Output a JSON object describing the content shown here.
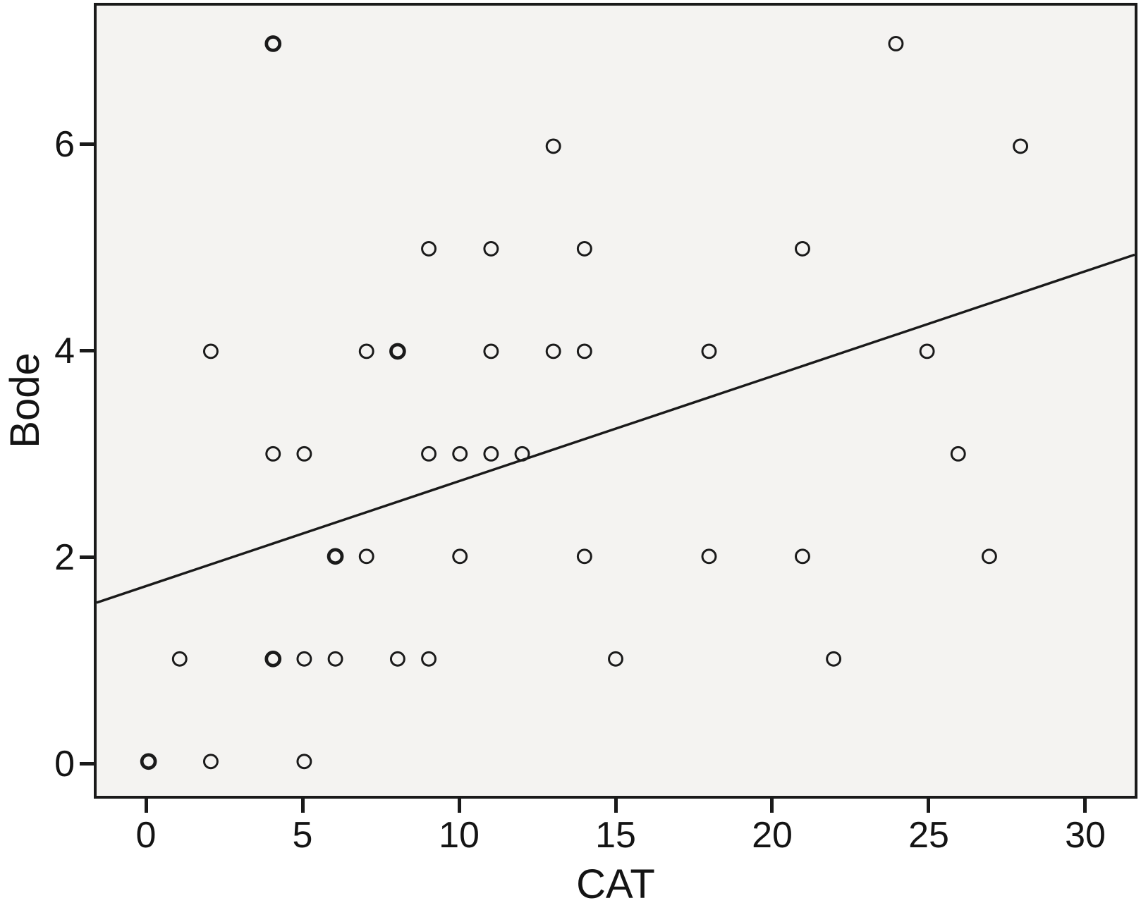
{
  "figure": {
    "kind": "scatterplot"
  },
  "chart_data": {
    "type": "scatter",
    "title": "",
    "xlabel": "CAT",
    "ylabel": "Bode",
    "xlim": [
      -1.667,
      31.667
    ],
    "ylim": [
      -0.335,
      7.371
    ],
    "x_ticks": [
      0,
      5,
      10,
      15,
      20,
      25,
      30
    ],
    "y_ticks": [
      0,
      2,
      4,
      6
    ],
    "grid": false,
    "legend": "none",
    "marker": "open-circle",
    "points": [
      {
        "x": 4,
        "y": 7,
        "bold": true
      },
      {
        "x": 24,
        "y": 7
      },
      {
        "x": 13,
        "y": 6
      },
      {
        "x": 28,
        "y": 6
      },
      {
        "x": 9,
        "y": 5
      },
      {
        "x": 11,
        "y": 5
      },
      {
        "x": 14,
        "y": 5
      },
      {
        "x": 21,
        "y": 5
      },
      {
        "x": 2,
        "y": 4
      },
      {
        "x": 7,
        "y": 4
      },
      {
        "x": 8,
        "y": 4,
        "bold": true
      },
      {
        "x": 11,
        "y": 4
      },
      {
        "x": 13,
        "y": 4
      },
      {
        "x": 14,
        "y": 4
      },
      {
        "x": 18,
        "y": 4
      },
      {
        "x": 25,
        "y": 4
      },
      {
        "x": 4,
        "y": 3
      },
      {
        "x": 5,
        "y": 3
      },
      {
        "x": 9,
        "y": 3
      },
      {
        "x": 10,
        "y": 3
      },
      {
        "x": 11,
        "y": 3
      },
      {
        "x": 12,
        "y": 3
      },
      {
        "x": 26,
        "y": 3
      },
      {
        "x": 6,
        "y": 2,
        "bold": true
      },
      {
        "x": 7,
        "y": 2
      },
      {
        "x": 10,
        "y": 2
      },
      {
        "x": 14,
        "y": 2
      },
      {
        "x": 18,
        "y": 2
      },
      {
        "x": 21,
        "y": 2
      },
      {
        "x": 27,
        "y": 2
      },
      {
        "x": 1,
        "y": 1
      },
      {
        "x": 4,
        "y": 1,
        "bold": true
      },
      {
        "x": 5,
        "y": 1
      },
      {
        "x": 6,
        "y": 1
      },
      {
        "x": 8,
        "y": 1
      },
      {
        "x": 9,
        "y": 1
      },
      {
        "x": 15,
        "y": 1
      },
      {
        "x": 22,
        "y": 1
      },
      {
        "x": 0,
        "y": 0,
        "bold": true
      },
      {
        "x": 2,
        "y": 0
      },
      {
        "x": 5,
        "y": 0
      }
    ],
    "trendline": {
      "type": "linear",
      "x1": -1.667,
      "y1": 1.549,
      "x2": 31.667,
      "y2": 4.942
    },
    "colors": {
      "marker_stroke": "#1a1a1a",
      "trend_line": "#1a1a1a",
      "plot_bg": "#f4f3f1",
      "frame": "#1a1a1a",
      "text": "#141414",
      "page_bg": "#ffffff"
    }
  }
}
